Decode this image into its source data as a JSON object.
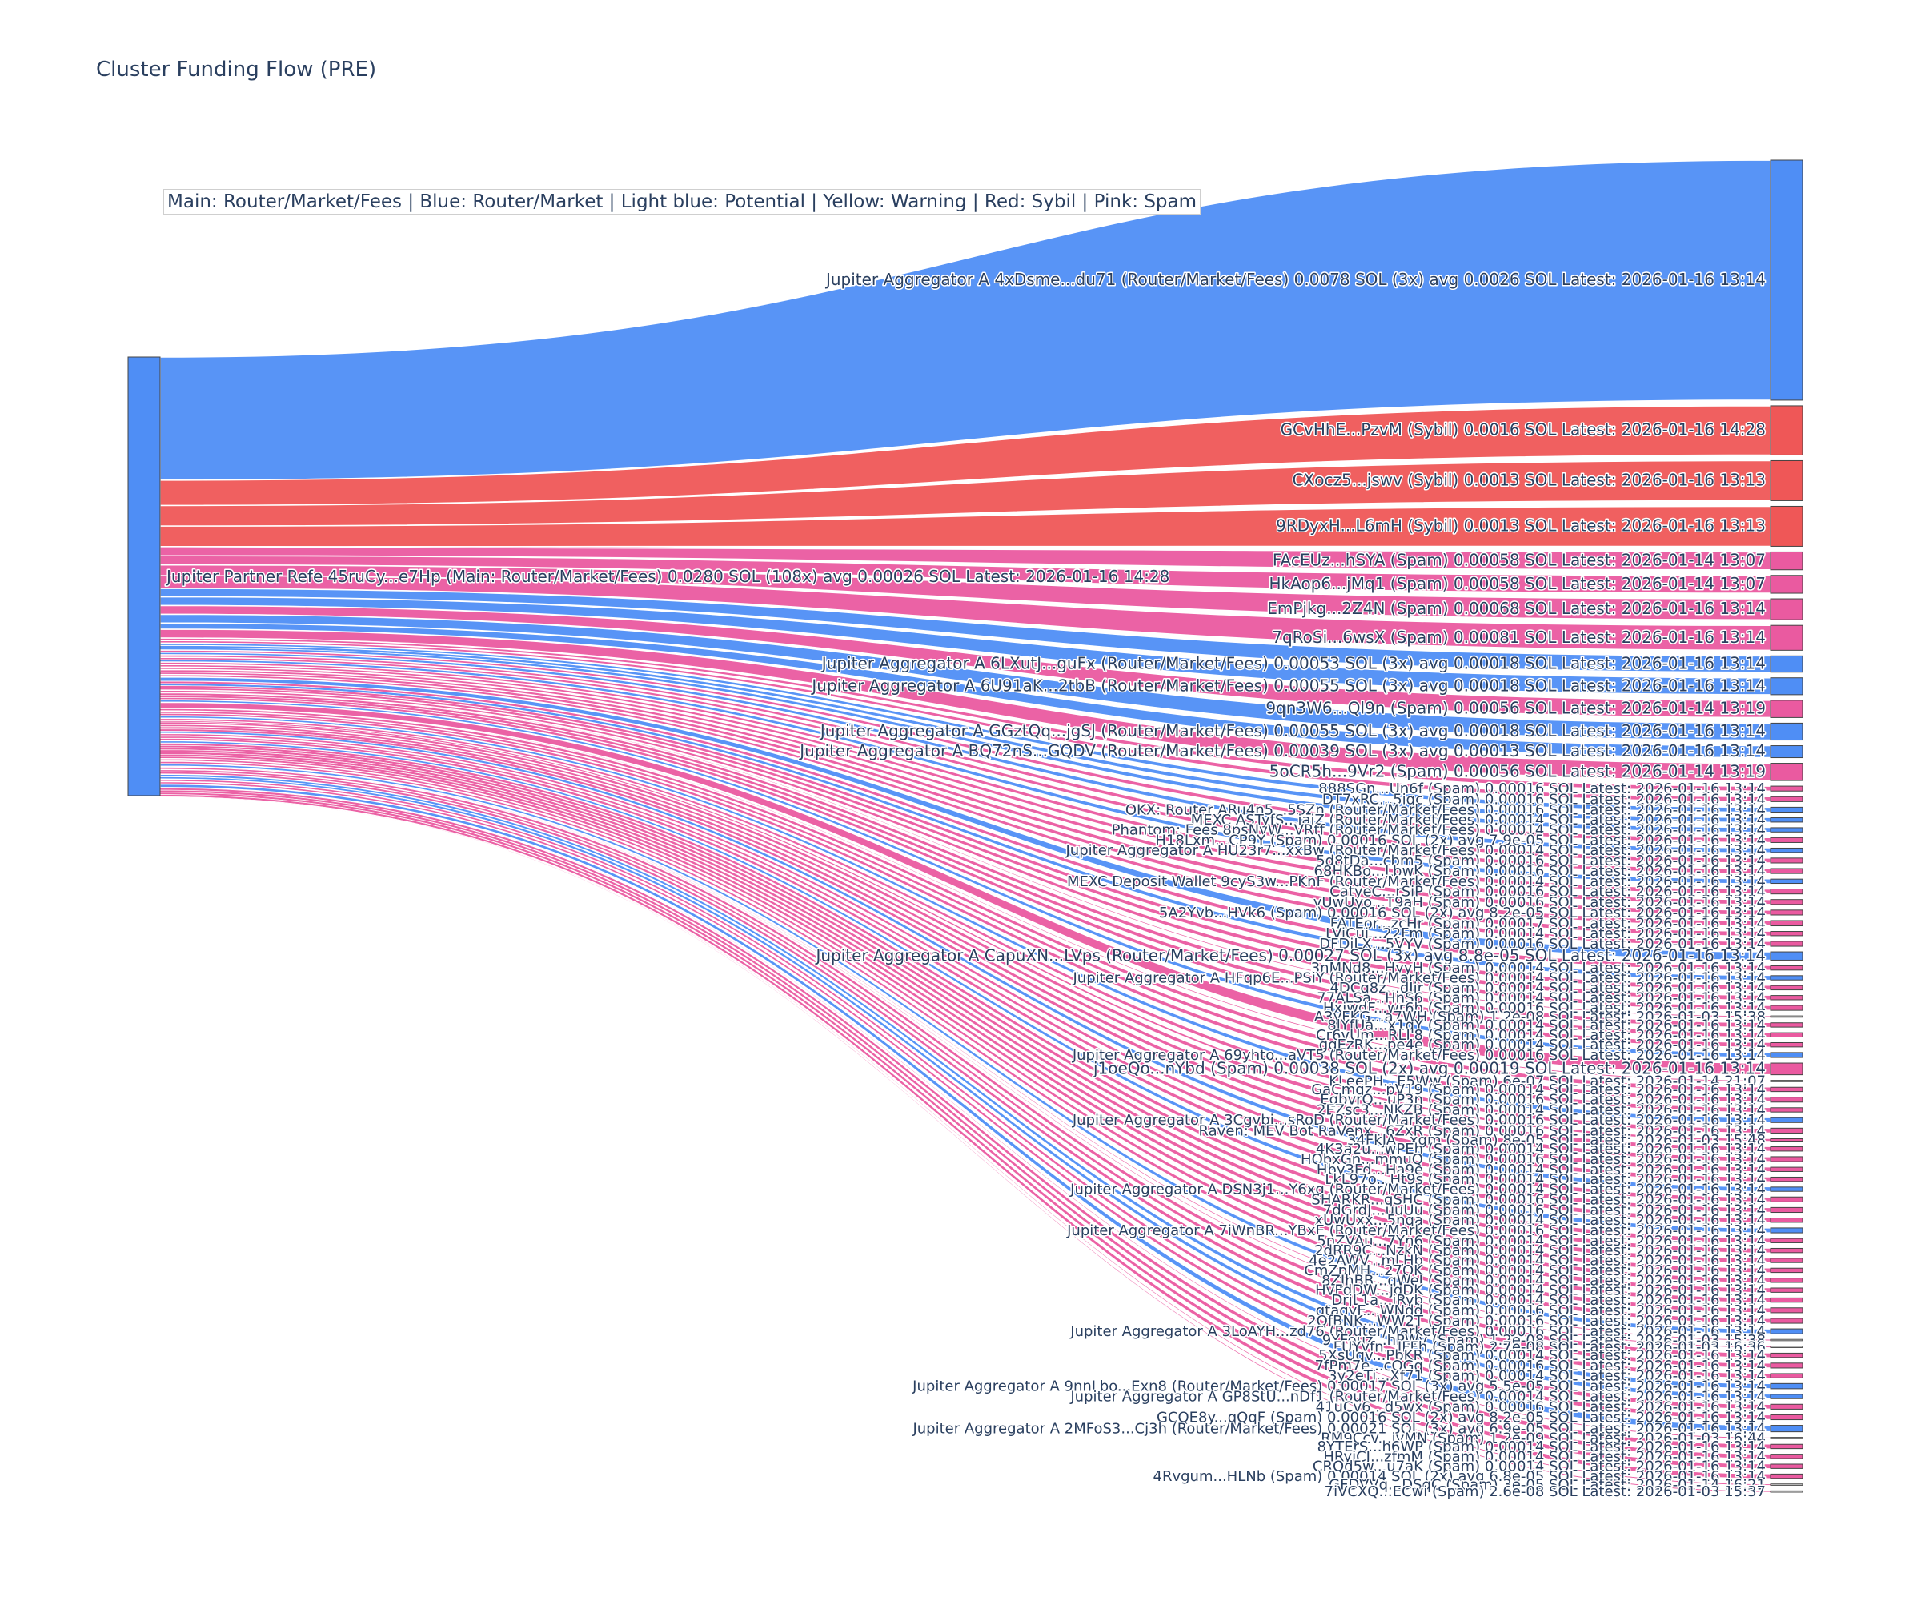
{
  "title": "Cluster Funding Flow (PRE)",
  "legend_text": "Main: Router/Market/Fees  |  Blue: Router/Market | Light blue: Potential | Yellow: Warning | Red: Sybil | Pink: Spam",
  "colors": {
    "main_node": "#4f8ef5",
    "router": "#4f8ef5",
    "sybil": "#ef5757",
    "spam": "#ea5aa0",
    "tiny": "#444444",
    "node_border": "#444444"
  },
  "chart_data": {
    "type": "sankey",
    "source": {
      "label": "Jupiter Partner Refe 45ruCy...e7Hp (Main: Router/Market/Fees) 0.0280 SOL (108x) avg 0.00026 SOL Latest: 2026-01-16 14:28",
      "category": "router"
    },
    "targets": [
      {
        "label": "Jupiter Aggregator A 4xDsme...du71 (Router/Market/Fees) 0.0078 SOL (3x) avg 0.0026 SOL Latest: 2026-01-16 13:14",
        "category": "router",
        "value": 0.0078
      },
      {
        "label": "GCvHhE...PzvM (Sybil) 0.0016 SOL Latest: 2026-01-16 14:28",
        "category": "sybil",
        "value": 0.0016
      },
      {
        "label": "CXocz5...jswv (Sybil) 0.0013 SOL Latest: 2026-01-16 13:13",
        "category": "sybil",
        "value": 0.0013
      },
      {
        "label": "9RDyxH...L6mH (Sybil) 0.0013 SOL Latest: 2026-01-16 13:13",
        "category": "sybil",
        "value": 0.0013
      },
      {
        "label": "FAcEUz...hSYA (Spam) 0.00058 SOL Latest: 2026-01-14 13:07",
        "category": "spam",
        "value": 0.00058
      },
      {
        "label": "HkAop6...jMq1 (Spam) 0.00058 SOL Latest: 2026-01-14 13:07",
        "category": "spam",
        "value": 0.00058
      },
      {
        "label": "EmPjkg...2Z4N (Spam) 0.00068 SOL Latest: 2026-01-16 13:14",
        "category": "spam",
        "value": 0.00068
      },
      {
        "label": "7qRoSi...6wsX (Spam) 0.00081 SOL Latest: 2026-01-16 13:14",
        "category": "spam",
        "value": 0.00081
      },
      {
        "label": "Jupiter Aggregator A 6LXutJ...guFx (Router/Market/Fees) 0.00053 SOL (3x) avg 0.00018 SOL Latest: 2026-01-16 13:14",
        "category": "router",
        "value": 0.00053
      },
      {
        "label": "Jupiter Aggregator A 6U91aK...2tbB (Router/Market/Fees) 0.00055 SOL (3x) avg 0.00018 SOL Latest: 2026-01-16 13:14",
        "category": "router",
        "value": 0.00055
      },
      {
        "label": "9qn3W6...Ql9n (Spam) 0.00056 SOL Latest: 2026-01-14 13:19",
        "category": "spam",
        "value": 0.00056
      },
      {
        "label": "Jupiter Aggregator A GGztQq...jgSJ (Router/Market/Fees) 0.00055 SOL (3x) avg 0.00018 SOL Latest: 2026-01-16 13:14",
        "category": "router",
        "value": 0.00055
      },
      {
        "label": "Jupiter Aggregator A BQ72nS...GQDV (Router/Market/Fees) 0.00039 SOL (3x) avg 0.00013 SOL Latest: 2026-01-16 13:14",
        "category": "router",
        "value": 0.00039
      },
      {
        "label": "5oCR5h...9Vr2 (Spam) 0.00056 SOL Latest: 2026-01-14 13:19",
        "category": "spam",
        "value": 0.00056
      },
      {
        "label": "888SGn...Un6f (Spam) 0.00016 SOL Latest: 2026-01-16 13:14",
        "category": "spam",
        "value": 0.00016
      },
      {
        "label": "DT7xRC...5iqc (Spam) 0.00016 SOL Latest: 2026-01-16 13:14",
        "category": "spam",
        "value": 0.00016
      },
      {
        "label": "OKX: Router ARu4n5...5SZn (Router/Market/Fees) 0.00016 SOL Latest: 2026-01-16 13:14",
        "category": "router",
        "value": 0.00016
      },
      {
        "label": "MEXC ASTyfS...iajZ (Router/Market/Fees) 0.00014 SOL Latest: 2026-01-16 13:14",
        "category": "router",
        "value": 0.00014
      },
      {
        "label": "Phantom: Fees 8psNvW...VRtf (Router/Market/Fees) 0.00014 SOL Latest: 2026-01-16 13:14",
        "category": "router",
        "value": 0.00014
      },
      {
        "label": "H18Lxm...CP9Y (Spam) 0.00016 SOL (2x) avg 7.9e-05 SOL Latest: 2026-01-16 13:14",
        "category": "spam",
        "value": 0.00016
      },
      {
        "label": "Jupiter Aggregator A HU23r7...xxBw (Router/Market/Fees) 0.00014 SOL Latest: 2026-01-16 13:14",
        "category": "router",
        "value": 0.00014
      },
      {
        "label": "5d8tDa...cbm5 (Spam) 0.00016 SOL Latest: 2026-01-16 13:14",
        "category": "spam",
        "value": 0.00016
      },
      {
        "label": "68HKBo...LbwK (Spam) 0.00016 SOL Latest: 2026-01-16 13:14",
        "category": "spam",
        "value": 0.00016
      },
      {
        "label": "MEXC Deposit Wallet 9cyS3w...PKnF (Router/Market/Fees) 0.00014 SOL Latest: 2026-01-16 13:14",
        "category": "router",
        "value": 0.00014
      },
      {
        "label": "CatyeC...rSiP (Spam) 0.00016 SOL Latest: 2026-01-16 13:14",
        "category": "spam",
        "value": 0.00016
      },
      {
        "label": "yUwUyo...T9aH (Spam) 0.00016 SOL Latest: 2026-01-16 13:14",
        "category": "spam",
        "value": 0.00016
      },
      {
        "label": "5A2Yvb...HVk6 (Spam) 0.00016 SOL (2x) avg 8.2e-05 SOL Latest: 2026-01-16 13:14",
        "category": "spam",
        "value": 0.00016
      },
      {
        "label": "FATEor...zcHr (Spam) 0.00017 SOL Latest: 2026-01-16 13:14",
        "category": "spam",
        "value": 0.00017
      },
      {
        "label": "LViCui...22Fm (Spam) 0.00014 SOL Latest: 2026-01-16 13:14",
        "category": "spam",
        "value": 0.00014
      },
      {
        "label": "DFDjLX...5VYV (Spam) 0.00016 SOL Latest: 2026-01-16 13:14",
        "category": "spam",
        "value": 0.00016
      },
      {
        "label": "Jupiter Aggregator A CapuXN...LVps (Router/Market/Fees) 0.00027 SOL (3x) avg 8.8e-05 SOL Latest: 2026-01-16 13:14",
        "category": "router",
        "value": 0.00027
      },
      {
        "label": "3nMNd8...HyyH (Spam) 0.00014 SOL Latest: 2026-01-16 13:14",
        "category": "spam",
        "value": 0.00014
      },
      {
        "label": "Jupiter Aggregator A HFqp6E...PSiY (Router/Market/Fees) 0.00014 SOL Latest: 2026-01-16 13:14",
        "category": "router",
        "value": 0.00014
      },
      {
        "label": "4DCq8z...dJir (Spam) 0.00014 SOL Latest: 2026-01-16 13:14",
        "category": "spam",
        "value": 0.00014
      },
      {
        "label": "77ALSa...HnS6 (Spam) 0.00014 SOL Latest: 2026-01-16 13:14",
        "category": "spam",
        "value": 0.00014
      },
      {
        "label": "HxjwdF...wr6b (Spam) 0.00016 SOL Latest: 2026-01-16 13:14",
        "category": "spam",
        "value": 0.00016
      },
      {
        "label": "A3yFKG...a7WH (Spam) 1.2e-08 SOL Latest: 2026-01-03 15:38",
        "category": "tiny",
        "value": 1.2e-05
      },
      {
        "label": "8lYfUa...x1qY (Spam) 0.00014 SOL Latest: 2026-01-16 13:14",
        "category": "spam",
        "value": 0.00014
      },
      {
        "label": "Cr6vUm...RLL8 (Spam) 0.00014 SOL Latest: 2026-01-16 13:14",
        "category": "spam",
        "value": 0.00014
      },
      {
        "label": "ggEzRK...pe4e (Spam) 0.00014 SOL Latest: 2026-01-16 13:14",
        "category": "spam",
        "value": 0.00014
      },
      {
        "label": "Jupiter Aggregator A 69yhto...aVT5 (Router/Market/Fees) 0.00016 SOL Latest: 2026-01-16 13:14",
        "category": "router",
        "value": 0.00016
      },
      {
        "label": "j1oeQo...nYbd (Spam) 0.00038 SOL (2x) avg 0.00019 SOL Latest: 2026-01-16 13:14",
        "category": "spam",
        "value": 0.00038
      },
      {
        "label": "KLeePH...E5Ww (Spam) 6e-07 SOL Latest: 2026-01-14 21:07",
        "category": "tiny",
        "value": 1.2e-05
      },
      {
        "label": "GaCmqz...pV19 (Spam) 0.00014 SOL Latest: 2026-01-16 13:14",
        "category": "spam",
        "value": 0.00014
      },
      {
        "label": "EgbvrQ...uP3n (Spam) 0.00016 SOL Latest: 2026-01-16 13:14",
        "category": "spam",
        "value": 0.00016
      },
      {
        "label": "2EZsc3...NKZB (Spam) 0.00014 SOL Latest: 2026-01-16 13:14",
        "category": "spam",
        "value": 0.00014
      },
      {
        "label": "Jupiter Aggregator A 3Cgvbi...sRoD (Router/Market/Fees) 0.00016 SOL Latest: 2026-01-16 13:14",
        "category": "router",
        "value": 0.00016
      },
      {
        "label": "Raven: MEV Bot RaVenx...6ZxR (Spam) 0.00016 SOL Latest: 2026-01-16 13:14",
        "category": "spam",
        "value": 0.00016
      },
      {
        "label": "34FkJA...xgm (Spam) 8e-05 SOL Latest: 2026-01-03 15:48",
        "category": "spam",
        "value": 8e-05
      },
      {
        "label": "4K3a2u...wPEh (Spam) 0.00014 SOL Latest: 2026-01-16 13:14",
        "category": "spam",
        "value": 0.00014
      },
      {
        "label": "HQbxGn...mmuQ (Spam) 0.00016 SOL Latest: 2026-01-16 13:14",
        "category": "spam",
        "value": 0.00016
      },
      {
        "label": "Hby3Fd...Ha9e (Spam) 0.00014 SOL Latest: 2026-01-16 13:14",
        "category": "spam",
        "value": 0.00014
      },
      {
        "label": "LkL97o...Ht9s (Spam) 0.00014 SOL Latest: 2026-01-16 13:14",
        "category": "spam",
        "value": 0.00014
      },
      {
        "label": "Jupiter Aggregator A DSN3j1...Y6xg (Router/Market/Fees) 0.00014 SOL Latest: 2026-01-16 13:14",
        "category": "router",
        "value": 0.00014
      },
      {
        "label": "SHARKR...qSHC (Spam) 0.00016 SOL Latest: 2026-01-16 13:14",
        "category": "spam",
        "value": 0.00016
      },
      {
        "label": "7dGrdJ...uuUu (Spam) 0.00016 SOL Latest: 2026-01-16 13:14",
        "category": "spam",
        "value": 0.00016
      },
      {
        "label": "xUwUxx...5nqa (Spam) 0.00014 SOL Latest: 2026-01-16 13:14",
        "category": "spam",
        "value": 0.00014
      },
      {
        "label": "Jupiter Aggregator A 7iWnBR...YBxE (Router/Market/Fees) 0.00016 SOL Latest: 2026-01-16 13:14",
        "category": "router",
        "value": 0.00016
      },
      {
        "label": "5nZVAu...7Yn6 (Spam) 0.00014 SOL Latest: 2026-01-16 13:14",
        "category": "spam",
        "value": 0.00014
      },
      {
        "label": "2dRR9C...NzkN (Spam) 0.00014 SOL Latest: 2026-01-16 13:14",
        "category": "spam",
        "value": 0.00014
      },
      {
        "label": "4e2AWV...mLHb (Spam) 0.00014 SOL Latest: 2026-01-16 13:14",
        "category": "spam",
        "value": 0.00014
      },
      {
        "label": "CmZpMH...27QK (Spam) 0.00014 SOL Latest: 2026-01-16 13:14",
        "category": "spam",
        "value": 0.00014
      },
      {
        "label": "8ZJhBB...qWeJ (Spam) 0.00014 SOL Latest: 2026-01-16 13:14",
        "category": "spam",
        "value": 0.00014
      },
      {
        "label": "HvFdDW...jqDK (Spam) 0.00014 SOL Latest: 2026-01-16 13:14",
        "category": "spam",
        "value": 0.00014
      },
      {
        "label": "DrjL1a...iRyb (Spam) 0.00014 SOL Latest: 2026-01-16 13:14",
        "category": "spam",
        "value": 0.00014
      },
      {
        "label": "qtaqyE...WNdd (Spam) 0.00016 SOL Latest: 2026-01-16 13:14",
        "category": "spam",
        "value": 0.00016
      },
      {
        "label": "2QfBNK...WW2T (Spam) 0.00016 SOL Latest: 2026-01-16 13:14",
        "category": "spam",
        "value": 0.00016
      },
      {
        "label": "Jupiter Aggregator A 3LoAYH...zd76 (Router/Market/Fees) 0.00016 SOL Latest: 2026-01-16 13:14",
        "category": "router",
        "value": 0.00016
      },
      {
        "label": "9YFeuz...hPWv (Spam) 1.2e-08 SOL Latest: 2026-01-03 15:38",
        "category": "tiny",
        "value": 1.2e-05
      },
      {
        "label": "FUYyfn...JFFh (Spam) 2.7e-08 SOL Latest: 2026-01-03 16:36",
        "category": "tiny",
        "value": 1.2e-05
      },
      {
        "label": "5XsUqv...PbKR (Spam) 0.00014 SOL Latest: 2026-01-16 13:14",
        "category": "spam",
        "value": 0.00014
      },
      {
        "label": "7fPm7e...cQGq (Spam) 0.00016 SOL Latest: 2026-01-16 13:14",
        "category": "spam",
        "value": 0.00016
      },
      {
        "label": "3y2eTi...Xf71 (Spam) 0.00014 SOL Latest: 2026-01-16 13:14",
        "category": "spam",
        "value": 0.00014
      },
      {
        "label": "Jupiter Aggregator A 9nnLbo...Exn8 (Router/Market/Fees) 0.00017 SOL (3x) avg 5.5e-05 SOL Latest: 2026-01-16 13:14",
        "category": "router",
        "value": 0.00017
      },
      {
        "label": "Jupiter Aggregator A GP8StU...nDf1 (Router/Market/Fees) 0.00014 SOL Latest: 2026-01-16 13:14",
        "category": "router",
        "value": 0.00014
      },
      {
        "label": "41uCv6...d5wx (Spam) 0.00016 SOL Latest: 2026-01-16 13:14",
        "category": "spam",
        "value": 0.00016
      },
      {
        "label": "GCQE8y...qQqF (Spam) 0.00016 SOL (2x) avg 8.2e-05 SOL Latest: 2026-01-16 13:14",
        "category": "spam",
        "value": 0.00016
      },
      {
        "label": "Jupiter Aggregator A 2MFoS3...Cj3h (Router/Market/Fees) 0.00021 SOL (3x) avg 6.9e-05 SOL Latest: 2026-01-16 13:14",
        "category": "router",
        "value": 0.00021
      },
      {
        "label": "RM9Ccv...ivMN (Spam) 1.2e-09 SOL Latest: 2026-01-03 16:44",
        "category": "tiny",
        "value": 1.2e-05
      },
      {
        "label": "8YTErS...h6WP (Spam) 0.00014 SOL Latest: 2026-01-16 13:14",
        "category": "spam",
        "value": 0.00014
      },
      {
        "label": "HRyiCJ...zfmM (Spam) 0.00014 SOL Latest: 2026-01-16 13:14",
        "category": "spam",
        "value": 0.00014
      },
      {
        "label": "CRQd5w...u7aK (Spam) 0.00014 SOL Latest: 2026-01-16 13:14",
        "category": "spam",
        "value": 0.00014
      },
      {
        "label": "4Rvgum...HLNb (Spam) 0.00014 SOL (2x) avg 6.8e-05 SOL Latest: 2026-01-16 13:14",
        "category": "spam",
        "value": 0.00014
      },
      {
        "label": "GFDVVq...DSqC (Spam) 3e-05 SOL Latest: 2026-01-14 16:21",
        "category": "tiny",
        "value": 1.2e-05
      },
      {
        "label": "7iVCXQ...ECwi (Spam) 2.6e-08 SOL Latest: 2026-01-03 15:37",
        "category": "tiny",
        "value": 1.2e-05
      }
    ]
  }
}
